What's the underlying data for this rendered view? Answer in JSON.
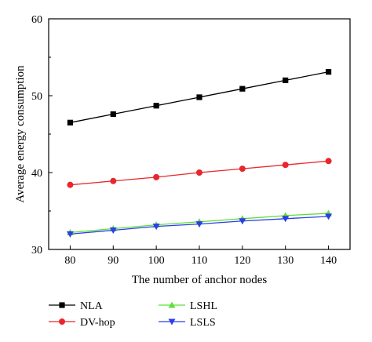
{
  "chart_data": {
    "type": "line",
    "title": "",
    "xlabel": "The number of anchor nodes",
    "ylabel": "Average energy consumption",
    "x": [
      80,
      90,
      100,
      110,
      120,
      130,
      140
    ],
    "xlim": [
      75,
      145
    ],
    "ylim": [
      30,
      60
    ],
    "xticks": [
      "80",
      "90",
      "100",
      "110",
      "120",
      "130",
      "140"
    ],
    "yticks": [
      "30",
      "40",
      "50",
      "60"
    ],
    "grid": false,
    "legend_position": "bottom",
    "series": [
      {
        "name": "NLA",
        "color": "#000000",
        "marker": "square",
        "values": [
          46.5,
          47.6,
          48.7,
          49.8,
          50.9,
          52.0,
          53.1
        ]
      },
      {
        "name": "DV-hop",
        "color": "#e8272c",
        "marker": "circle",
        "values": [
          38.4,
          38.9,
          39.4,
          40.0,
          40.5,
          41.0,
          41.5
        ]
      },
      {
        "name": "LSHL",
        "color": "#5ce03a",
        "marker": "triangle-up",
        "values": [
          32.2,
          32.7,
          33.2,
          33.6,
          34.0,
          34.4,
          34.7
        ]
      },
      {
        "name": "LSLS",
        "color": "#2c3ee6",
        "marker": "triangle-down",
        "values": [
          32.0,
          32.5,
          33.0,
          33.3,
          33.7,
          34.0,
          34.3
        ]
      }
    ]
  }
}
